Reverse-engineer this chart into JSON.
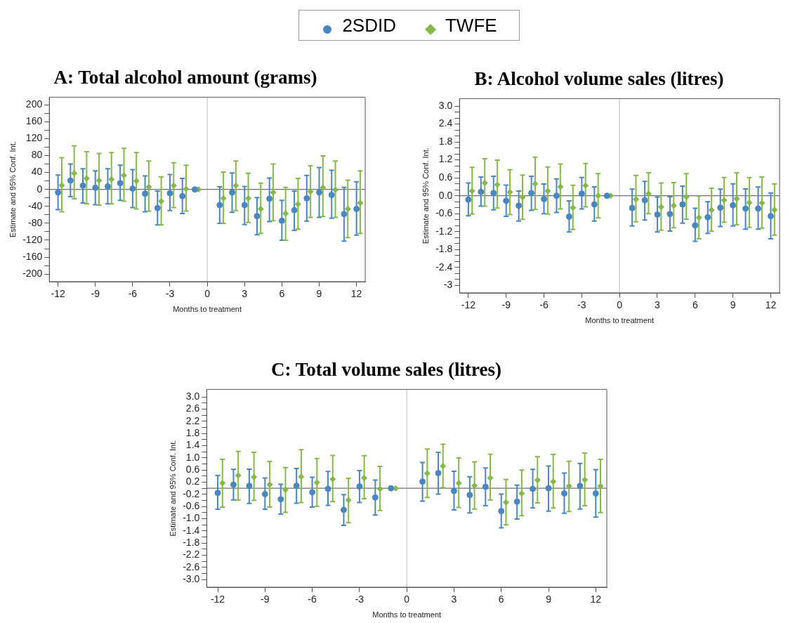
{
  "chart_data": [
    {
      "type": "scatter",
      "title": "A: Total alcohol amount (grams)",
      "xlabel": "Months to treatment",
      "ylabel": "Estimate and 95% Conf. Int.",
      "legend": "top",
      "grid": false,
      "xlim": [
        -12.7,
        12.7
      ],
      "xticks": [
        -12,
        -9,
        -6,
        -3,
        0,
        3,
        6,
        9,
        12
      ],
      "ylim": [
        -218,
        218
      ],
      "yticks": [
        -200,
        {
          "value": -180,
          "label": null
        },
        -160,
        {
          "value": -140,
          "label": null
        },
        -120,
        {
          "value": -100,
          "label": null
        },
        -80,
        {
          "value": -60,
          "label": null
        },
        -40,
        {
          "value": -20,
          "label": null
        },
        0,
        {
          "value": 20,
          "label": null
        },
        40,
        {
          "value": 60,
          "label": null
        },
        80,
        {
          "value": 100,
          "label": null
        },
        120,
        {
          "value": 140,
          "label": null
        },
        160,
        {
          "value": 180,
          "label": null
        },
        200
      ],
      "ref_lines": [
        {
          "axis": "x",
          "value": 0,
          "color": "#c8c8c8"
        },
        {
          "axis": "y",
          "value": 0,
          "color": "#707070"
        }
      ],
      "series": [
        {
          "name": "2SDID",
          "color": "#4a86c0",
          "marker": "circle",
          "x": [
            -12,
            -11,
            -10,
            -9,
            -8,
            -7,
            -6,
            -5,
            -4,
            -3,
            -2,
            -1,
            1,
            2,
            3,
            4,
            5,
            6,
            7,
            8,
            9,
            10,
            11,
            12
          ],
          "values": [
            -7,
            21,
            9,
            4,
            7,
            15,
            2,
            -10,
            -44,
            -9,
            -16,
            0,
            -37,
            -7,
            -37,
            -63,
            -22,
            -74,
            -49,
            -21,
            -7,
            -13,
            -58,
            -46
          ],
          "errors": [
            [
              -48,
              34
            ],
            [
              -17,
              60
            ],
            [
              -32,
              49
            ],
            [
              -36,
              44
            ],
            [
              -34,
              49
            ],
            [
              -26,
              57
            ],
            [
              -43,
              47
            ],
            [
              -53,
              32
            ],
            [
              -84,
              -4
            ],
            [
              -50,
              35
            ],
            [
              -57,
              26
            ],
            null,
            [
              -80,
              6
            ],
            [
              -54,
              39
            ],
            [
              -83,
              7
            ],
            [
              -107,
              -19
            ],
            [
              -76,
              27
            ],
            [
              -120,
              -26
            ],
            [
              -97,
              -4
            ],
            [
              -75,
              33
            ],
            [
              -66,
              52
            ],
            [
              -68,
              45
            ],
            [
              -122,
              5
            ],
            [
              -108,
              18
            ]
          ]
        },
        {
          "name": "TWFE",
          "color": "#86b84a",
          "marker": "diamond",
          "x": [
            -11.7,
            -10.7,
            -9.7,
            -8.7,
            -7.7,
            -6.7,
            -5.7,
            -4.7,
            -3.7,
            -2.7,
            -1.7,
            -0.7,
            1.3,
            2.3,
            3.3,
            4.3,
            5.3,
            6.3,
            7.3,
            8.3,
            9.3,
            10.3,
            11.3,
            12.3
          ],
          "values": [
            10,
            38,
            26,
            21,
            24,
            33,
            20,
            6,
            -28,
            9,
            1,
            0,
            -21,
            9,
            -21,
            -46,
            -7,
            -57,
            -35,
            -5,
            4,
            -1,
            -46,
            -32
          ],
          "errors": [
            [
              -53,
              75
            ],
            [
              -22,
              103
            ],
            [
              -34,
              89
            ],
            [
              -37,
              85
            ],
            [
              -34,
              87
            ],
            [
              -28,
              97
            ],
            [
              -46,
              87
            ],
            [
              -51,
              67
            ],
            [
              -84,
              30
            ],
            [
              -43,
              63
            ],
            [
              -51,
              57
            ],
            null,
            [
              -80,
              41
            ],
            [
              -50,
              67
            ],
            [
              -78,
              38
            ],
            [
              -104,
              15
            ],
            [
              -74,
              60
            ],
            [
              -120,
              5
            ],
            [
              -94,
              26
            ],
            [
              -66,
              56
            ],
            [
              -64,
              79
            ],
            [
              -66,
              67
            ],
            [
              -114,
              22
            ],
            [
              -104,
              44
            ]
          ]
        }
      ]
    },
    {
      "type": "scatter",
      "title": "B: Alcohol volume sales (litres)",
      "xlabel": "Months to treatment",
      "ylabel": "Estimate and 95% Conf. Int.",
      "grid": false,
      "xlim": [
        -12.7,
        12.7
      ],
      "xticks": [
        -12,
        -9,
        -6,
        -3,
        0,
        3,
        6,
        9,
        12
      ],
      "ylim": [
        -3.25,
        3.25
      ],
      "yticks": [
        -3.0,
        {
          "value": -2.8,
          "label": null
        },
        {
          "value": -2.6,
          "label": null
        },
        -2.4,
        {
          "value": -2.2,
          "label": null
        },
        {
          "value": -2.0,
          "label": null
        },
        -1.8,
        {
          "value": -1.6,
          "label": null
        },
        {
          "value": -1.4,
          "label": null
        },
        -1.2,
        {
          "value": -1.0,
          "label": null
        },
        {
          "value": -0.8,
          "label": null
        },
        -0.6,
        {
          "value": -0.4,
          "label": null
        },
        {
          "value": -0.2,
          "label": null
        },
        {
          "value": 0,
          "label": "0.0"
        },
        {
          "value": 0.2,
          "label": null
        },
        {
          "value": 0.4,
          "label": null
        },
        0.6,
        {
          "value": 0.8,
          "label": null
        },
        {
          "value": 1.0,
          "label": null
        },
        1.2,
        {
          "value": 1.4,
          "label": null
        },
        {
          "value": 1.6,
          "label": null
        },
        1.8,
        {
          "value": 2.0,
          "label": null
        },
        {
          "value": 2.2,
          "label": null
        },
        2.4,
        {
          "value": 2.6,
          "label": null
        },
        {
          "value": 2.8,
          "label": null
        },
        {
          "value": 3.0,
          "label": "3.0"
        }
      ],
      "ref_lines": [
        {
          "axis": "x",
          "value": 0,
          "color": "#c8c8c8"
        },
        {
          "axis": "y",
          "value": 0,
          "color": "#707070"
        }
      ],
      "series": [
        {
          "color": "#4a86c0",
          "marker": "circle",
          "x": [
            -12,
            -11,
            -10,
            -9,
            -8,
            -7,
            -6,
            -5,
            -4,
            -3,
            -2,
            -1,
            1,
            2,
            3,
            4,
            5,
            6,
            7,
            8,
            9,
            10,
            11,
            12
          ],
          "values": [
            -0.13,
            0.13,
            0.09,
            -0.17,
            -0.33,
            0.09,
            -0.11,
            0.0,
            -0.7,
            0.07,
            -0.29,
            0,
            -0.41,
            -0.15,
            -0.63,
            -0.61,
            -0.29,
            -0.99,
            -0.72,
            -0.4,
            -0.32,
            -0.43,
            -0.43,
            -0.68
          ],
          "errors": [
            [
              -0.67,
              0.43
            ],
            [
              -0.35,
              0.63
            ],
            [
              -0.47,
              0.65
            ],
            [
              -0.69,
              0.36
            ],
            [
              -0.85,
              0.16
            ],
            [
              -0.49,
              0.65
            ],
            [
              -0.6,
              0.39
            ],
            [
              -0.56,
              0.56
            ],
            [
              -1.21,
              -0.17
            ],
            [
              -0.44,
              0.61
            ],
            [
              -0.85,
              0.3
            ],
            null,
            [
              -1.01,
              0.22
            ],
            [
              -0.81,
              0.48
            ],
            [
              -1.21,
              -0.04
            ],
            [
              -1.18,
              -0.03
            ],
            [
              -0.92,
              0.32
            ],
            [
              -1.52,
              -0.42
            ],
            [
              -1.26,
              -0.2
            ],
            [
              -1.03,
              0.22
            ],
            [
              -1.01,
              0.4
            ],
            [
              -1.12,
              0.23
            ],
            [
              -1.12,
              0.29
            ],
            [
              -1.44,
              0.09
            ]
          ]
        },
        {
          "color": "#86b84a",
          "marker": "diamond",
          "x": [
            -11.7,
            -10.7,
            -9.7,
            -8.7,
            -7.7,
            -6.7,
            -5.7,
            -4.7,
            -3.7,
            -2.7,
            -1.7,
            -0.7,
            1.3,
            2.3,
            3.3,
            4.3,
            5.3,
            6.3,
            7.3,
            8.3,
            9.3,
            10.3,
            11.3,
            12.3
          ],
          "values": [
            0.16,
            0.43,
            0.37,
            0.12,
            -0.05,
            0.4,
            0.16,
            0.3,
            -0.4,
            0.34,
            0.0,
            0,
            -0.12,
            0.07,
            -0.38,
            -0.33,
            -0.04,
            -0.73,
            -0.48,
            -0.15,
            -0.1,
            -0.23,
            -0.24,
            -0.47
          ],
          "errors": [
            [
              -0.61,
              0.95
            ],
            [
              -0.35,
              1.24
            ],
            [
              -0.41,
              1.19
            ],
            [
              -0.63,
              0.87
            ],
            [
              -0.79,
              0.69
            ],
            [
              -0.46,
              1.29
            ],
            [
              -0.61,
              0.96
            ],
            [
              -0.44,
              1.06
            ],
            [
              -1.13,
              0.35
            ],
            [
              -0.37,
              1.08
            ],
            [
              -0.74,
              0.74
            ],
            null,
            [
              -0.87,
              0.68
            ],
            [
              -0.6,
              0.77
            ],
            [
              -1.15,
              0.43
            ],
            [
              -1.07,
              0.44
            ],
            [
              -0.78,
              0.74
            ],
            [
              -1.44,
              -0.01
            ],
            [
              -1.19,
              0.25
            ],
            [
              -0.89,
              0.61
            ],
            [
              -0.97,
              0.77
            ],
            [
              -1.06,
              0.61
            ],
            [
              -1.08,
              0.63
            ],
            [
              -1.32,
              0.4
            ]
          ]
        }
      ]
    },
    {
      "type": "scatter",
      "title": "C: Total volume sales (litres)",
      "xlabel": "Months to treatment",
      "ylabel": "Estimate and 95% Conf. Int.",
      "grid": false,
      "xlim": [
        -12.7,
        12.7
      ],
      "xticks": [
        -12,
        -9,
        -6,
        -3,
        0,
        3,
        6,
        9,
        12
      ],
      "ylim": [
        -3.25,
        3.25
      ],
      "yticks": [
        {
          "value": -3.0,
          "label": "-3.0"
        },
        {
          "value": -2.8,
          "label": null
        },
        -2.6,
        {
          "value": -2.4,
          "label": null
        },
        -2.2,
        {
          "value": -2.0,
          "label": null
        },
        -1.8,
        {
          "value": -1.6,
          "label": null
        },
        -1.4,
        {
          "value": -1.2,
          "label": null
        },
        {
          "value": -1.0,
          "label": "-1.0"
        },
        {
          "value": -0.8,
          "label": null
        },
        -0.6,
        {
          "value": -0.4,
          "label": null
        },
        -0.2,
        {
          "value": 0,
          "label": null
        },
        0.2,
        {
          "value": 0.4,
          "label": null
        },
        0.6,
        {
          "value": 0.8,
          "label": null
        },
        {
          "value": 1.0,
          "label": "1.0"
        },
        {
          "value": 1.2,
          "label": null
        },
        1.4,
        {
          "value": 1.6,
          "label": null
        },
        1.8,
        {
          "value": 2.0,
          "label": null
        },
        2.2,
        {
          "value": 2.4,
          "label": null
        },
        2.6,
        {
          "value": 2.8,
          "label": null
        },
        {
          "value": 3.0,
          "label": "3.0"
        }
      ],
      "ref_lines": [
        {
          "axis": "x",
          "value": 0,
          "color": "#c8c8c8"
        },
        {
          "axis": "y",
          "value": 0,
          "color": "#707070"
        }
      ],
      "series": [
        {
          "color": "#4a86c0",
          "marker": "circle",
          "x": [
            -12,
            -11,
            -10,
            -9,
            -8,
            -7,
            -6,
            -5,
            -4,
            -3,
            -2,
            -1,
            1,
            2,
            3,
            4,
            5,
            6,
            7,
            8,
            9,
            10,
            11,
            12
          ],
          "values": [
            -0.15,
            0.12,
            0.08,
            -0.19,
            -0.36,
            0.08,
            -0.13,
            -0.02,
            -0.71,
            0.06,
            -0.3,
            0,
            0.22,
            0.5,
            -0.09,
            -0.22,
            0.05,
            -0.75,
            -0.44,
            -0.02,
            0.0,
            -0.17,
            0.08,
            -0.17
          ],
          "errors": [
            [
              -0.69,
              0.42
            ],
            [
              -0.38,
              0.62
            ],
            [
              -0.5,
              0.63
            ],
            [
              -0.69,
              0.34
            ],
            [
              -0.85,
              0.13
            ],
            [
              -0.49,
              0.65
            ],
            [
              -0.62,
              0.36
            ],
            [
              -0.56,
              0.55
            ],
            [
              -1.22,
              -0.21
            ],
            [
              -0.47,
              0.58
            ],
            [
              -0.88,
              0.27
            ],
            null,
            [
              -0.42,
              0.85
            ],
            [
              -0.19,
              1.18
            ],
            [
              -0.71,
              0.56
            ],
            [
              -0.81,
              0.38
            ],
            [
              -0.57,
              0.67
            ],
            [
              -1.3,
              -0.19
            ],
            [
              -1.01,
              0.1
            ],
            [
              -0.65,
              0.62
            ],
            [
              -0.75,
              0.73
            ],
            [
              -0.82,
              0.5
            ],
            [
              -0.68,
              0.82
            ],
            [
              -0.95,
              0.61
            ]
          ]
        },
        {
          "color": "#86b84a",
          "marker": "diamond",
          "x": [
            -11.7,
            -10.7,
            -9.7,
            -8.7,
            -7.7,
            -6.7,
            -5.7,
            -4.7,
            -3.7,
            -2.7,
            -1.7,
            -0.7,
            1.3,
            2.3,
            3.3,
            4.3,
            5.3,
            6.3,
            7.3,
            8.3,
            9.3,
            10.3,
            11.3,
            12.3
          ],
          "values": [
            0.17,
            0.42,
            0.37,
            0.12,
            -0.05,
            0.38,
            0.19,
            0.3,
            -0.39,
            0.34,
            -0.02,
            0,
            0.49,
            0.73,
            0.17,
            0.09,
            0.34,
            -0.46,
            -0.17,
            0.27,
            0.22,
            0.07,
            0.28,
            0.07
          ],
          "errors": [
            [
              -0.62,
              0.95
            ],
            [
              -0.39,
              1.21
            ],
            [
              -0.4,
              1.18
            ],
            [
              -0.62,
              0.88
            ],
            [
              -0.79,
              0.68
            ],
            [
              -0.47,
              1.27
            ],
            [
              -0.59,
              0.98
            ],
            [
              -0.44,
              1.08
            ],
            [
              -1.13,
              0.33
            ],
            [
              -0.34,
              1.07
            ],
            [
              -0.73,
              0.72
            ],
            null,
            [
              -0.3,
              1.29
            ],
            [
              0.02,
              1.45
            ],
            [
              -0.63,
              1.0
            ],
            [
              -0.68,
              0.87
            ],
            [
              -0.39,
              1.12
            ],
            [
              -1.2,
              0.29
            ],
            [
              -0.9,
              0.6
            ],
            [
              -0.48,
              1.04
            ],
            [
              -0.65,
              1.11
            ],
            [
              -0.76,
              0.89
            ],
            [
              -0.57,
              1.16
            ],
            [
              -0.8,
              0.95
            ]
          ]
        }
      ]
    }
  ]
}
